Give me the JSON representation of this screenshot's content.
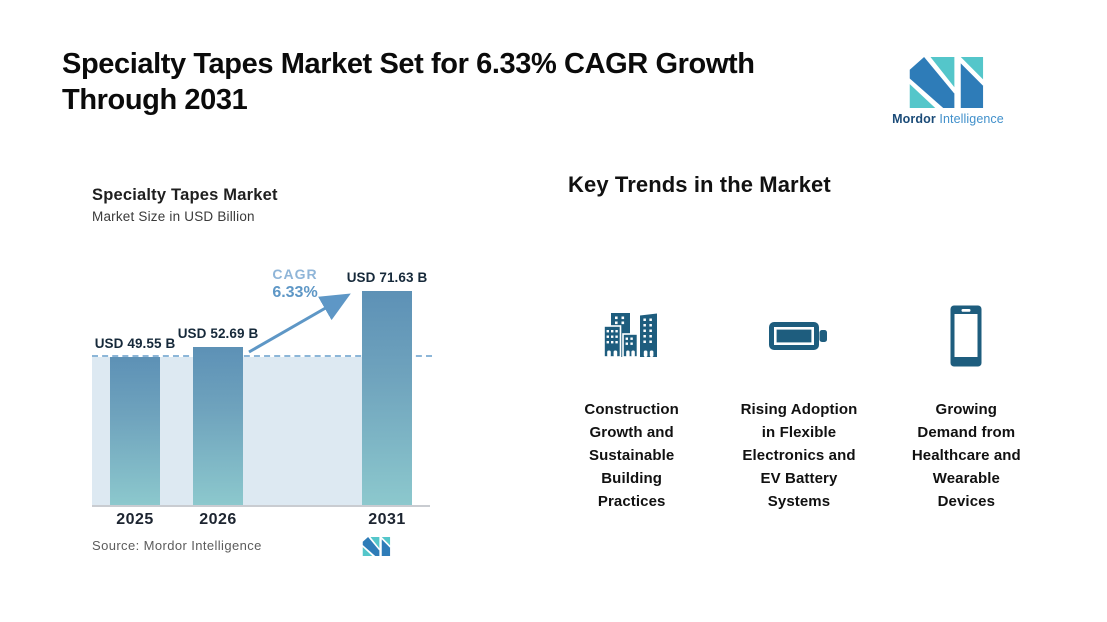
{
  "page": {
    "title": "Specialty Tapes Market Set for 6.33% CAGR Growth Through 2031"
  },
  "brand": {
    "name_bold": "Mordor",
    "name_light": "Intelligence"
  },
  "chart": {
    "title": "Specialty Tapes Market",
    "subtitle": "Market Size in USD Billion",
    "cagr_label": "CAGR",
    "cagr_value": "6.33%",
    "source": "Source: Mordor Intelligence",
    "bars": [
      {
        "year": "2025",
        "label": "USD 49.55 B",
        "value": 49.55
      },
      {
        "year": "2026",
        "label": "USD 52.69 B",
        "value": 52.69
      },
      {
        "year": "2031",
        "label": "USD 71.63 B",
        "value": 71.63
      }
    ]
  },
  "chart_data": {
    "type": "bar",
    "title": "Specialty Tapes Market",
    "subtitle": "Market Size in USD Billion",
    "categories": [
      "2025",
      "2026",
      "2031"
    ],
    "values": [
      49.55,
      52.69,
      71.63
    ],
    "unit": "USD Billion",
    "data_labels": [
      "USD 49.55 B",
      "USD 52.69 B",
      "USD 71.63 B"
    ],
    "annotations": [
      "CAGR 6.33%"
    ],
    "dashed_reference_line_at": 49.55,
    "grid": false,
    "legend": false,
    "source": "Source: Mordor Intelligence"
  },
  "trends": {
    "heading": "Key Trends in the Market",
    "items": [
      {
        "icon": "buildings-icon",
        "label": "Construction\nGrowth and\nSustainable\nBuilding\nPractices"
      },
      {
        "icon": "battery-icon",
        "label": "Rising Adoption\nin Flexible\nElectronics and\nEV Battery\nSystems"
      },
      {
        "icon": "smartphone-icon",
        "label": "Growing\nDemand from\nHealthcare and\nWearable\nDevices"
      }
    ]
  },
  "colors": {
    "bar_top": "#5d91b6",
    "bar_bottom": "#8cc8cd",
    "shade": "#dde9f2",
    "dashed_line": "#8cb6d8",
    "arrow": "#5e97c6",
    "cagr_light": "#8fb5d8",
    "icon": "#1e5d7e",
    "logo_blue": "#2e7cb8",
    "logo_teal": "#54c6ca",
    "text_dark": "#16293a",
    "source_gray": "#5c5c5c"
  }
}
